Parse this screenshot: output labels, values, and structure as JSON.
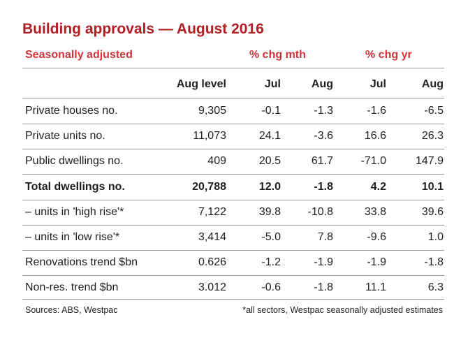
{
  "title": "Building approvals — August 2016",
  "subtitle_left": "Seasonally adjusted",
  "group_mth": "% chg mth",
  "group_yr": "% chg yr",
  "columns": [
    "Aug level",
    "Jul",
    "Aug",
    "Jul",
    "Aug"
  ],
  "rows": [
    {
      "label": "Private houses no.",
      "values": [
        "9,305",
        "-0.1",
        "-1.3",
        "-1.6",
        "-6.5"
      ],
      "bold": false
    },
    {
      "label": "Private units no.",
      "values": [
        "11,073",
        "24.1",
        "-3.6",
        "16.6",
        "26.3"
      ],
      "bold": false
    },
    {
      "label": "Public dwellings no.",
      "values": [
        "409",
        "20.5",
        "61.7",
        "-71.0",
        "147.9"
      ],
      "bold": false
    },
    {
      "label": "Total dwellings no.",
      "values": [
        "20,788",
        "12.0",
        "-1.8",
        "4.2",
        "10.1"
      ],
      "bold": true
    },
    {
      "label": "– units in 'high rise'*",
      "values": [
        "7,122",
        "39.8",
        "-10.8",
        "33.8",
        "39.6"
      ],
      "bold": false
    },
    {
      "label": "– units in 'low rise'*",
      "values": [
        "3,414",
        "-5.0",
        "7.8",
        "-9.6",
        "1.0"
      ],
      "bold": false
    },
    {
      "label": "Renovations trend $bn",
      "values": [
        "0.626",
        "-1.2",
        "-1.9",
        "-1.9",
        "-1.8"
      ],
      "bold": false
    },
    {
      "label": "Non-res. trend $bn",
      "values": [
        "3.012",
        "-0.6",
        "-1.8",
        "11.1",
        "6.3"
      ],
      "bold": false
    }
  ],
  "footer_left": "Sources: ABS, Westpac",
  "footer_right": "*all sectors, Westpac seasonally adjusted estimates",
  "colors": {
    "title": "#b01e23",
    "accent": "#d0343a",
    "rule": "#9a9a9a"
  }
}
